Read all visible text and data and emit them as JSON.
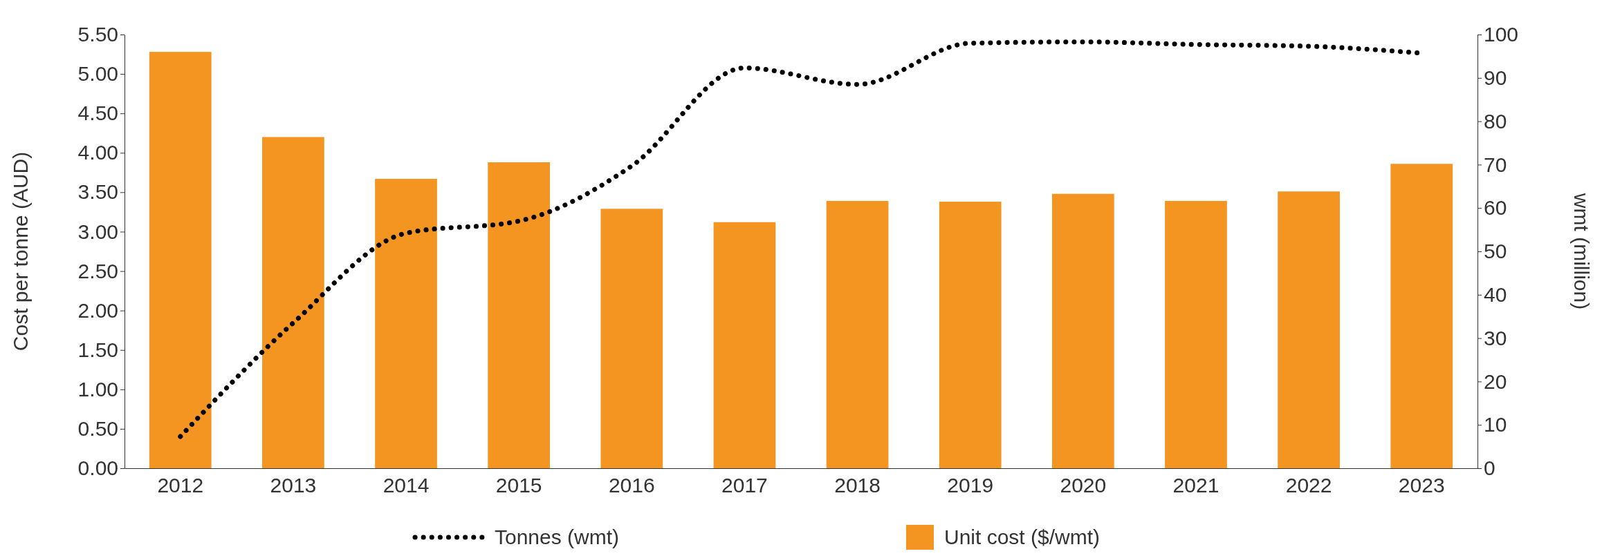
{
  "chart_data": {
    "type": "bar",
    "ylabel": "Cost per tonne (AUD)",
    "y2label": "wmt (million)",
    "categories": [
      "2012",
      "2013",
      "2014",
      "2015",
      "2016",
      "2017",
      "2018",
      "2019",
      "2020",
      "2021",
      "2022",
      "2023"
    ],
    "series": [
      {
        "name": "Tonnes (wmt)",
        "type": "line",
        "axis": "y2",
        "color": "#000000",
        "line_style": "dotted",
        "values": [
          7.3,
          33.5,
          54.2,
          57,
          69.7,
          92.3,
          88.5,
          98,
          98.3,
          97.7,
          97.3,
          95.7
        ]
      },
      {
        "name": "Unit cost ($/wmt)",
        "color": "#f39520",
        "values": [
          5.28,
          4.2,
          3.67,
          3.88,
          3.29,
          3.12,
          3.39,
          3.38,
          3.48,
          3.39,
          3.51,
          3.86
        ]
      }
    ],
    "ylim": [
      0,
      5.5
    ],
    "yticks": [
      {
        "value": 0,
        "label": "0.00"
      },
      {
        "value": 0.5,
        "label": "0.50"
      },
      {
        "value": 1,
        "label": "1.00"
      },
      {
        "value": 1.5,
        "label": "1.50"
      },
      {
        "value": 2,
        "label": "2.00"
      },
      {
        "value": 2.5,
        "label": "2.50"
      },
      {
        "value": 3,
        "label": "3.00"
      },
      {
        "value": 3.5,
        "label": "3.50"
      },
      {
        "value": 4,
        "label": "4.00"
      },
      {
        "value": 4.5,
        "label": "4.50"
      },
      {
        "value": 5,
        "label": "5.00"
      },
      {
        "value": 5.5,
        "label": "5.50"
      }
    ],
    "y2lim": [
      0,
      100
    ],
    "y2ticks": [
      0,
      10,
      20,
      30,
      40,
      50,
      60,
      70,
      80,
      90,
      100
    ],
    "legend": "bottom",
    "grid": false
  }
}
